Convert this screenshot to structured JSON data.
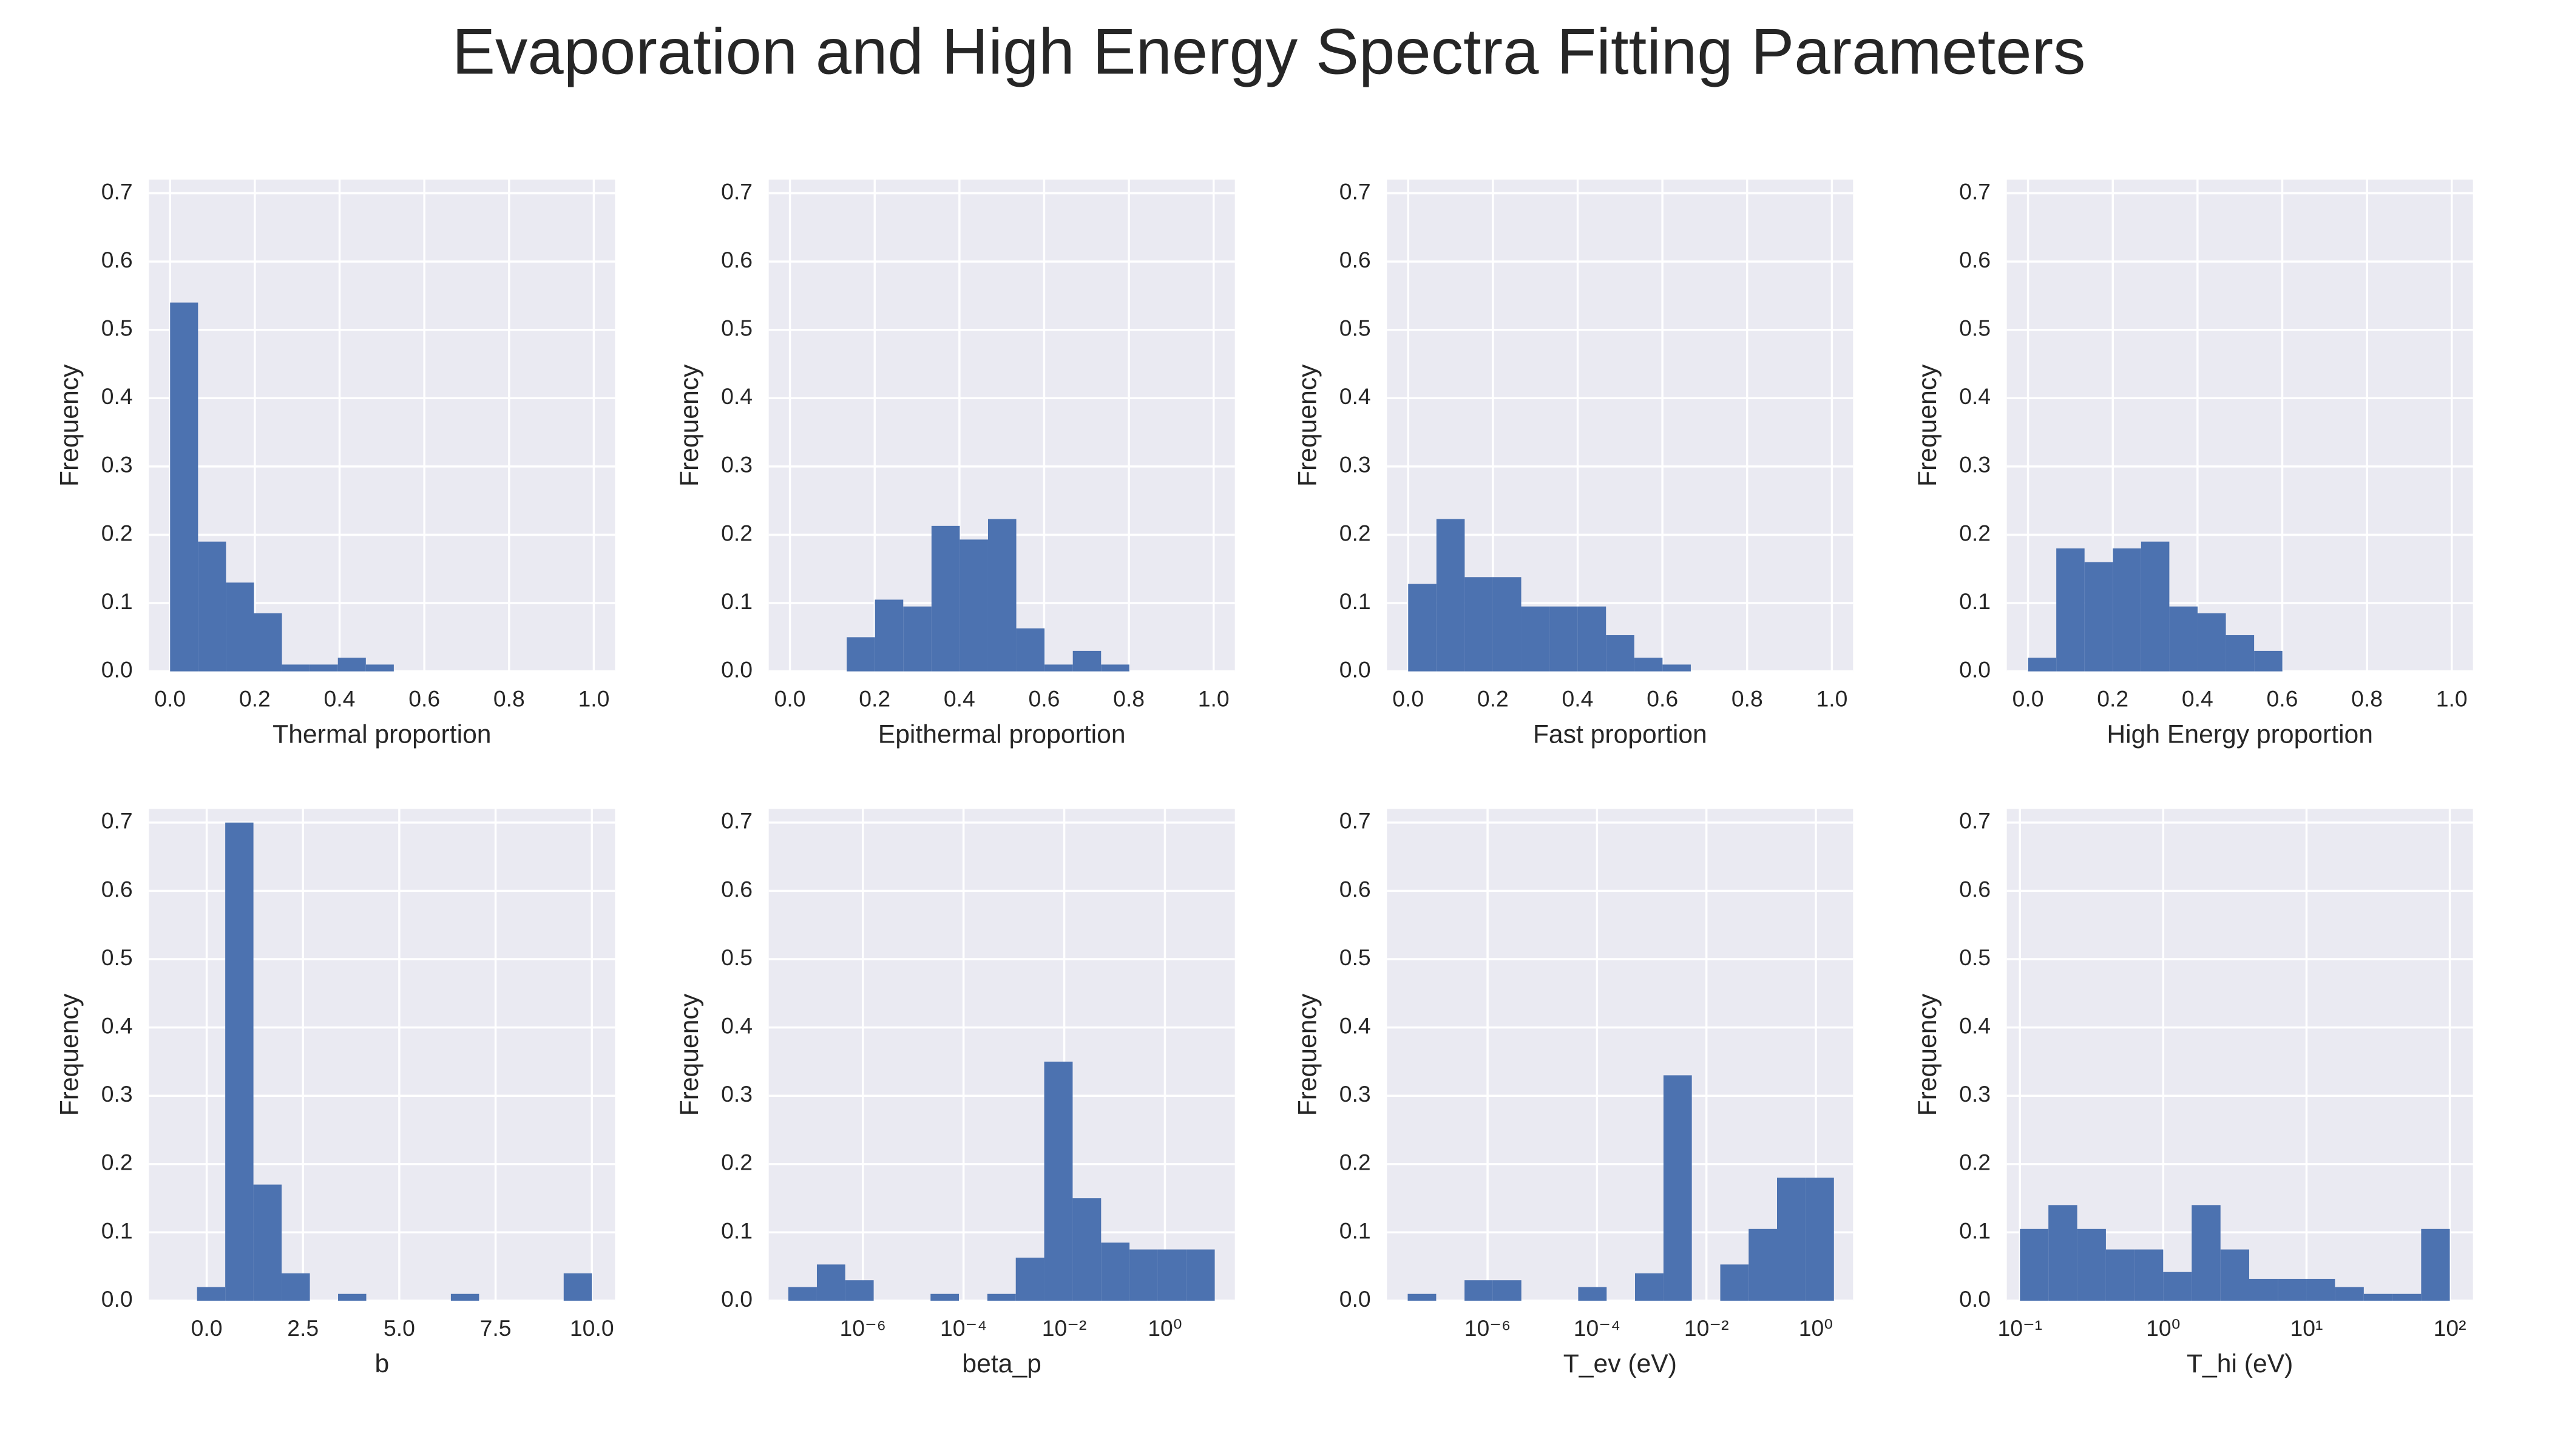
{
  "title": "Evaporation and High Energy Spectra Fitting Parameters",
  "chart_data": [
    {
      "type": "histogram",
      "xlabel": "Thermal proportion",
      "ylabel": "Frequency",
      "color": "#4c72b0",
      "grid": true,
      "xscale": "linear",
      "bins": [
        0,
        0.066,
        0.132,
        0.198,
        0.264,
        0.33,
        0.396,
        0.462,
        0.528
      ],
      "values": [
        0.54,
        0.19,
        0.13,
        0.085,
        0.01,
        0.01,
        0.02,
        0.01
      ],
      "xlim": [
        -0.05,
        1.05
      ],
      "xticks": [
        {
          "value": 0,
          "label": "0.0"
        },
        {
          "value": 0.2,
          "label": "0.2"
        },
        {
          "value": 0.4,
          "label": "0.4"
        },
        {
          "value": 0.6,
          "label": "0.6"
        },
        {
          "value": 0.8,
          "label": "0.8"
        },
        {
          "value": 1,
          "label": "1.0"
        }
      ],
      "ylim": [
        0,
        0.72
      ],
      "yticks": [
        {
          "value": 0,
          "label": "0.0"
        },
        0.1,
        0.2,
        0.3,
        0.4,
        0.5,
        0.6,
        0.7
      ]
    },
    {
      "type": "histogram",
      "xlabel": "Epithermal proportion",
      "ylabel": "Frequency",
      "color": "#4c72b0",
      "grid": true,
      "xscale": "linear",
      "bins": [
        0.134,
        0.2007,
        0.2674,
        0.3341,
        0.4008,
        0.4675,
        0.5342,
        0.6009,
        0.6676,
        0.7343,
        0.801
      ],
      "values": [
        0.05,
        0.105,
        0.095,
        0.213,
        0.193,
        0.223,
        0.063,
        0.01,
        0.03,
        0.01
      ],
      "xlim": [
        -0.05,
        1.05
      ],
      "xticks": [
        {
          "value": 0,
          "label": "0.0"
        },
        {
          "value": 0.2,
          "label": "0.2"
        },
        {
          "value": 0.4,
          "label": "0.4"
        },
        {
          "value": 0.6,
          "label": "0.6"
        },
        {
          "value": 0.8,
          "label": "0.8"
        },
        {
          "value": 1,
          "label": "1.0"
        }
      ],
      "ylim": [
        0,
        0.72
      ],
      "yticks": [
        {
          "value": 0,
          "label": "0.0"
        },
        0.1,
        0.2,
        0.3,
        0.4,
        0.5,
        0.6,
        0.7
      ]
    },
    {
      "type": "histogram",
      "xlabel": "Fast proportion",
      "ylabel": "Frequency",
      "color": "#4c72b0",
      "grid": true,
      "xscale": "linear",
      "bins": [
        0,
        0.0667,
        0.1334,
        0.2001,
        0.2668,
        0.3335,
        0.4002,
        0.4669,
        0.5336,
        0.6003,
        0.667
      ],
      "values": [
        0.128,
        0.223,
        0.138,
        0.138,
        0.095,
        0.095,
        0.095,
        0.053,
        0.02,
        0.01
      ],
      "xlim": [
        -0.05,
        1.05
      ],
      "xticks": [
        {
          "value": 0,
          "label": "0.0"
        },
        {
          "value": 0.2,
          "label": "0.2"
        },
        {
          "value": 0.4,
          "label": "0.4"
        },
        {
          "value": 0.6,
          "label": "0.6"
        },
        {
          "value": 0.8,
          "label": "0.8"
        },
        {
          "value": 1,
          "label": "1.0"
        }
      ],
      "ylim": [
        0,
        0.72
      ],
      "yticks": [
        {
          "value": 0,
          "label": "0.0"
        },
        0.1,
        0.2,
        0.3,
        0.4,
        0.5,
        0.6,
        0.7
      ]
    },
    {
      "type": "histogram",
      "xlabel": "High Energy proportion",
      "ylabel": "Frequency",
      "color": "#4c72b0",
      "grid": true,
      "xscale": "linear",
      "bins": [
        0,
        0.0667,
        0.1334,
        0.2001,
        0.2668,
        0.3335,
        0.4002,
        0.4669,
        0.5336,
        0.6003
      ],
      "values": [
        0.02,
        0.18,
        0.16,
        0.18,
        0.19,
        0.095,
        0.085,
        0.053,
        0.03
      ],
      "xlim": [
        -0.05,
        1.05
      ],
      "xticks": [
        {
          "value": 0,
          "label": "0.0"
        },
        {
          "value": 0.2,
          "label": "0.2"
        },
        {
          "value": 0.4,
          "label": "0.4"
        },
        {
          "value": 0.6,
          "label": "0.6"
        },
        {
          "value": 0.8,
          "label": "0.8"
        },
        {
          "value": 1,
          "label": "1.0"
        }
      ],
      "ylim": [
        0,
        0.72
      ],
      "yticks": [
        {
          "value": 0,
          "label": "0.0"
        },
        0.1,
        0.2,
        0.3,
        0.4,
        0.5,
        0.6,
        0.7
      ]
    },
    {
      "type": "histogram",
      "xlabel": "b",
      "ylabel": "Frequency",
      "color": "#4c72b0",
      "grid": true,
      "xscale": "linear",
      "bins": [
        -0.25,
        0.482,
        1.214,
        1.946,
        2.679,
        3.411,
        4.143,
        4.875,
        5.607,
        6.339,
        7.071,
        7.804,
        8.536,
        9.268,
        10.0
      ],
      "values": [
        0.02,
        0.7,
        0.17,
        0.04,
        0,
        0.01,
        0,
        0,
        0,
        0.01,
        0,
        0,
        0,
        0.04
      ],
      "xlim": [
        -1.5,
        10.6
      ],
      "xticks": [
        {
          "value": 0,
          "label": "0.0"
        },
        2.5,
        {
          "value": 5,
          "label": "5.0"
        },
        7.5,
        {
          "value": 10,
          "label": "10.0"
        }
      ],
      "ylim": [
        0,
        0.72
      ],
      "yticks": [
        {
          "value": 0,
          "label": "0.0"
        },
        0.1,
        0.2,
        0.3,
        0.4,
        0.5,
        0.6,
        0.7
      ]
    },
    {
      "type": "histogram",
      "xlabel": "beta_p",
      "ylabel": "Frequency",
      "color": "#4c72b0",
      "grid": true,
      "xscale": "log",
      "bins": [
        3.31e-08,
        1.22e-07,
        4.46e-07,
        1.64e-06,
        6.01e-06,
        2.21e-05,
        8.09e-05,
        0.000297,
        0.00109,
        0.004,
        0.0147,
        0.054,
        0.198,
        0.726,
        2.67,
        9.77
      ],
      "values": [
        0.02,
        0.053,
        0.03,
        0,
        0,
        0.01,
        0,
        0.01,
        0.063,
        0.35,
        0.15,
        0.085,
        0.075,
        0.075,
        0.075
      ],
      "xlim": [
        1.35e-08,
        24.5
      ],
      "xticks": [
        {
          "value": 1e-06,
          "label": "10⁻⁶"
        },
        {
          "value": 0.0001,
          "label": "10⁻⁴"
        },
        {
          "value": 0.01,
          "label": "10⁻²"
        },
        {
          "value": 1,
          "label": "10⁰"
        }
      ],
      "ylim": [
        0,
        0.72
      ],
      "yticks": [
        {
          "value": 0,
          "label": "0.0"
        },
        0.1,
        0.2,
        0.3,
        0.4,
        0.5,
        0.6,
        0.7
      ]
    },
    {
      "type": "histogram",
      "xlabel": "T_ev (eV)",
      "ylabel": "Frequency",
      "color": "#4c72b0",
      "grid": true,
      "xscale": "log",
      "bins": [
        3.47e-08,
        1.15e-07,
        3.79e-07,
        1.25e-06,
        4.14e-06,
        1.37e-05,
        4.53e-05,
        0.00015,
        0.000495,
        0.00164,
        0.00541,
        0.0179,
        0.0591,
        0.195,
        0.646,
        2.14
      ],
      "values": [
        0.01,
        0,
        0.03,
        0.03,
        0,
        0,
        0.02,
        0,
        0.04,
        0.33,
        0,
        0.053,
        0.105,
        0.18,
        0.18
      ],
      "xlim": [
        1.45e-08,
        4.79
      ],
      "xticks": [
        {
          "value": 1e-06,
          "label": "10⁻⁶"
        },
        {
          "value": 0.0001,
          "label": "10⁻⁴"
        },
        {
          "value": 0.01,
          "label": "10⁻²"
        },
        {
          "value": 1,
          "label": "10⁰"
        }
      ],
      "ylim": [
        0,
        0.72
      ],
      "yticks": [
        {
          "value": 0,
          "label": "0.0"
        },
        0.1,
        0.2,
        0.3,
        0.4,
        0.5,
        0.6,
        0.7
      ]
    },
    {
      "type": "histogram",
      "xlabel": "T_hi (eV)",
      "ylabel": "Frequency",
      "color": "#4c72b0",
      "grid": true,
      "xscale": "log",
      "bins": [
        0.1,
        0.158,
        0.251,
        0.398,
        0.631,
        1,
        1.58,
        2.51,
        3.98,
        6.31,
        10,
        15.8,
        25.1,
        39.8,
        63.1,
        100
      ],
      "values": [
        0.105,
        0.14,
        0.105,
        0.075,
        0.075,
        0.042,
        0.14,
        0.075,
        0.032,
        0.032,
        0.032,
        0.02,
        0.01,
        0.01,
        0.105
      ],
      "xlim": [
        0.081,
        145
      ],
      "xticks": [
        {
          "value": 0.1,
          "label": "10⁻¹"
        },
        {
          "value": 1,
          "label": "10⁰"
        },
        {
          "value": 10,
          "label": "10¹"
        },
        {
          "value": 100,
          "label": "10²"
        }
      ],
      "ylim": [
        0,
        0.72
      ],
      "yticks": [
        {
          "value": 0,
          "label": "0.0"
        },
        0.1,
        0.2,
        0.3,
        0.4,
        0.5,
        0.6,
        0.7
      ]
    }
  ]
}
